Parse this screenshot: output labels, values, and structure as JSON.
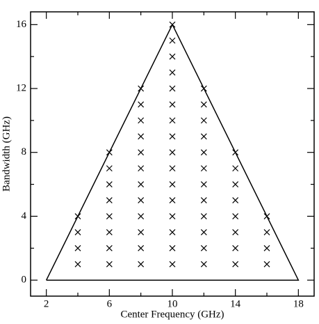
{
  "chart_data": {
    "type": "scatter",
    "xlabel": "Center Frequency (GHz)",
    "ylabel": "Bandwidth (GHz)",
    "xlim": [
      1,
      19
    ],
    "ylim": [
      -1,
      16.8
    ],
    "xticks": [
      2,
      6,
      10,
      14,
      18
    ],
    "yticks": [
      0,
      4,
      8,
      12,
      16
    ],
    "xminorticks": [
      4,
      8,
      12,
      16
    ],
    "yminorticks": [
      2,
      6,
      10,
      14
    ],
    "series": [
      {
        "type": "line",
        "color": "#000000",
        "x": [
          2,
          10,
          18,
          2
        ],
        "y": [
          0,
          16,
          0,
          0
        ]
      },
      {
        "type": "scatter",
        "color": "#000000",
        "marker": "x",
        "x": [
          4,
          4,
          4,
          4,
          6,
          6,
          6,
          6,
          6,
          6,
          6,
          6,
          8,
          8,
          8,
          8,
          8,
          8,
          8,
          8,
          8,
          8,
          8,
          8,
          10,
          10,
          10,
          10,
          10,
          10,
          10,
          10,
          10,
          10,
          10,
          10,
          10,
          10,
          10,
          10,
          12,
          12,
          12,
          12,
          12,
          12,
          12,
          12,
          12,
          12,
          12,
          12,
          14,
          14,
          14,
          14,
          14,
          14,
          14,
          14,
          16,
          16,
          16,
          16
        ],
        "y": [
          1,
          2,
          3,
          4,
          1,
          2,
          3,
          4,
          5,
          6,
          7,
          8,
          1,
          2,
          3,
          4,
          5,
          6,
          7,
          8,
          9,
          10,
          11,
          12,
          1,
          2,
          3,
          4,
          5,
          6,
          7,
          8,
          9,
          10,
          11,
          12,
          13,
          14,
          15,
          16,
          1,
          2,
          3,
          4,
          5,
          6,
          7,
          8,
          9,
          10,
          11,
          12,
          1,
          2,
          3,
          4,
          5,
          6,
          7,
          8,
          1,
          2,
          3,
          4
        ]
      }
    ]
  }
}
